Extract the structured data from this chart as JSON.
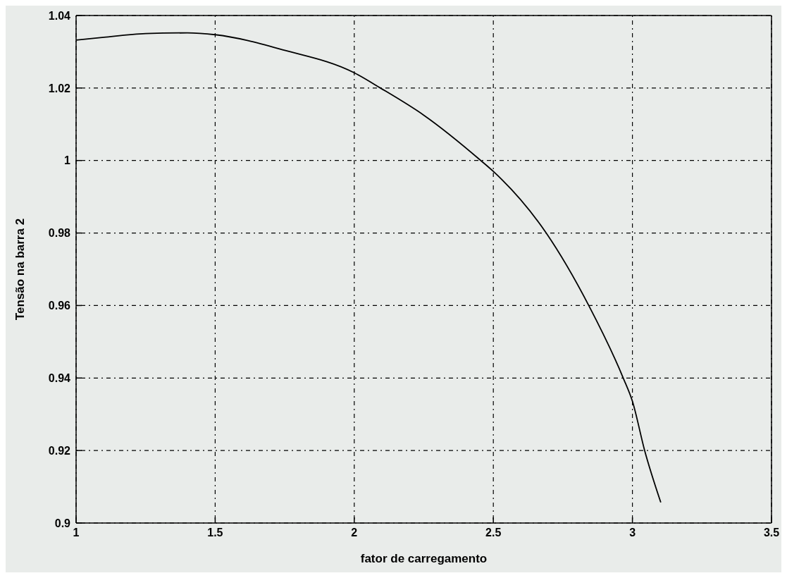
{
  "chart_data": {
    "type": "line",
    "xlabel": "fator de carregamento",
    "ylabel": "Tensão na barra 2",
    "x": [
      1,
      1.1,
      1.25,
      1.4,
      1.5,
      1.75,
      2,
      2.094,
      2.25,
      2.455,
      2.5,
      2.69,
      2.843,
      2.967,
      3,
      3.044,
      3.102
    ],
    "series": [
      {
        "color": "#000000",
        "values": [
          1.0332,
          1.034,
          1.035,
          1.0352,
          1.0347,
          1.0304,
          1.0242,
          1.02,
          1.0125,
          1.0,
          0.997,
          0.98,
          0.96,
          0.94,
          0.9336,
          0.92,
          0.9057
        ]
      }
    ],
    "xlim": [
      1,
      3.5
    ],
    "xticks": [
      1,
      1.5,
      2,
      2.5,
      3,
      3.5
    ],
    "ylim": [
      0.9,
      1.04
    ],
    "yticks": [
      0.9,
      0.92,
      0.94,
      0.96,
      0.98,
      1,
      1.02,
      1.04
    ],
    "grid": true,
    "marker": "none",
    "line_style": "solid"
  }
}
